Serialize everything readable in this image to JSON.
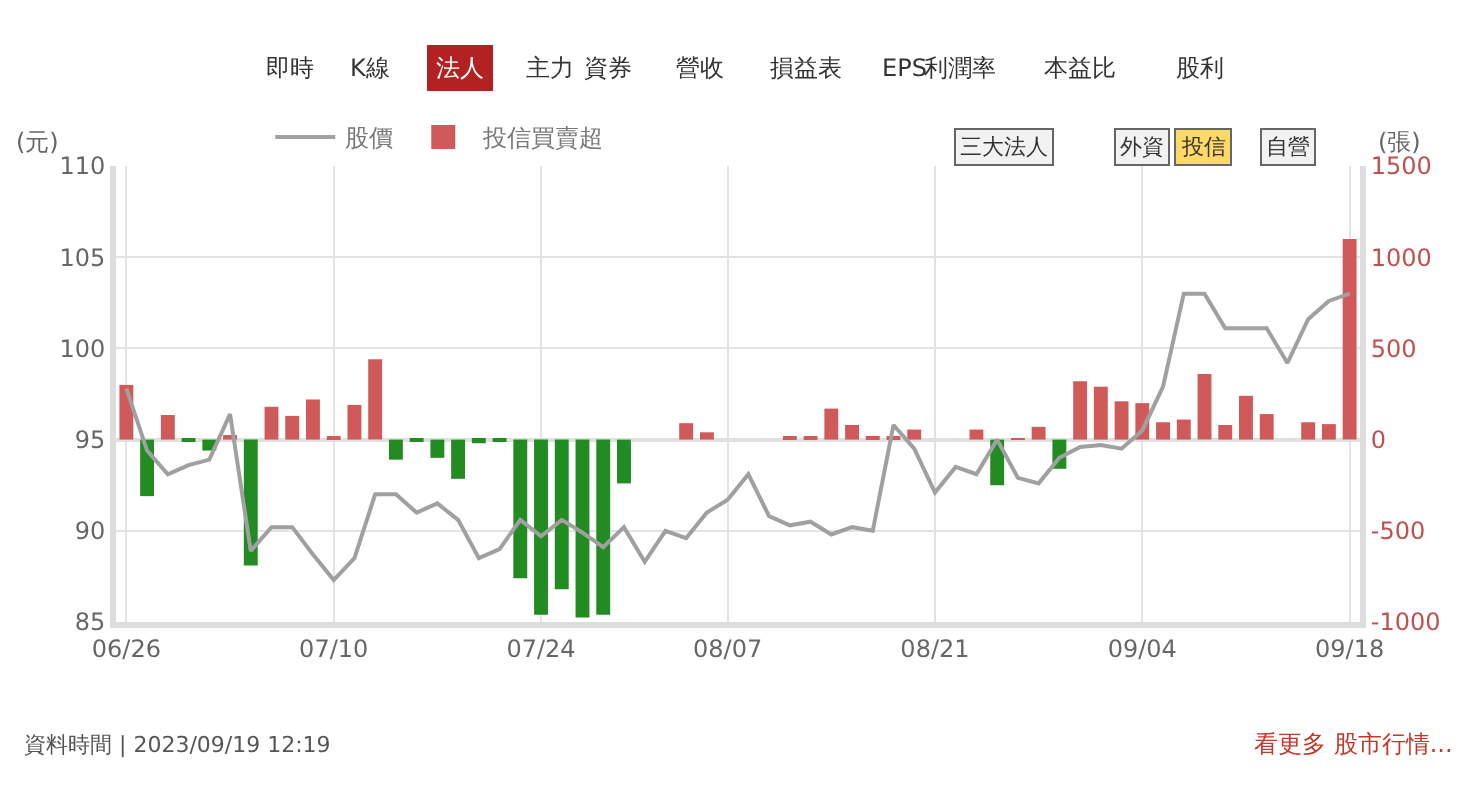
{
  "chart_data": {
    "type": "bar",
    "categories": [
      "06/26",
      null,
      null,
      null,
      null,
      null,
      null,
      null,
      null,
      null,
      "07/10",
      null,
      null,
      null,
      null,
      null,
      null,
      null,
      null,
      null,
      "07/24",
      null,
      null,
      null,
      null,
      null,
      null,
      null,
      null,
      "08/07",
      null,
      null,
      null,
      null,
      null,
      null,
      null,
      null,
      null,
      "08/21",
      null,
      null,
      null,
      null,
      null,
      null,
      null,
      null,
      null,
      "09/04",
      null,
      null,
      null,
      null,
      null,
      null,
      null,
      null,
      null,
      "09/18"
    ],
    "series": [
      {
        "name": "股價",
        "type": "line",
        "color": "#a0a0a0",
        "values": [
          97.8,
          94.4,
          93.1,
          93.6,
          93.9,
          96.4,
          88.9,
          90.2,
          90.2,
          88.7,
          87.3,
          88.5,
          92.0,
          92.0,
          91.0,
          91.5,
          90.6,
          88.5,
          89.0,
          90.6,
          89.7,
          90.6,
          89.9,
          89.1,
          90.2,
          88.3,
          90.0,
          89.6,
          91.0,
          91.7,
          93.1,
          90.8,
          90.3,
          90.5,
          89.8,
          90.2,
          90.0,
          95.8,
          94.5,
          92.1,
          93.5,
          93.1,
          95.0,
          92.9,
          92.6,
          94.0,
          94.6,
          94.7,
          94.5,
          95.5,
          97.9,
          103.0,
          103.0,
          101.1,
          101.1,
          101.1,
          99.2,
          101.6,
          102.6,
          103.0
        ]
      },
      {
        "name": "投信買賣超",
        "axis": "y2",
        "color": "#d05a5a",
        "values": [
          300,
          -310,
          135,
          -10,
          -60,
          25,
          -690,
          180,
          130,
          220,
          15,
          190,
          440,
          -110,
          -10,
          -100,
          -215,
          -20,
          -5,
          -760,
          -960,
          -820,
          -975,
          -960,
          -240,
          0,
          0,
          90,
          40,
          0,
          0,
          0,
          10,
          20,
          170,
          80,
          10,
          10,
          55,
          0,
          0,
          55,
          -250,
          5,
          70,
          -160,
          320,
          290,
          210,
          200,
          95,
          110,
          360,
          80,
          240,
          140,
          0,
          95,
          85,
          1100
        ],
        "colors": [
          "#d05a5a",
          "#228b22",
          "#d05a5a",
          "#228b22",
          "#228b22",
          "#d05a5a",
          "#228b22",
          "#d05a5a",
          "#d05a5a",
          "#d05a5a",
          "#d05a5a",
          "#d05a5a",
          "#d05a5a",
          "#228b22",
          "#228b22",
          "#228b22",
          "#228b22",
          "#228b22",
          "#228b22",
          "#228b22",
          "#228b22",
          "#228b22",
          "#228b22",
          "#228b22",
          "#228b22",
          "#d05a5a",
          "#d05a5a",
          "#d05a5a",
          "#d05a5a",
          "#d05a5a",
          "#d05a5a",
          "#d05a5a",
          "#d05a5a",
          "#d05a5a",
          "#d05a5a",
          "#d05a5a",
          "#d05a5a",
          "#d05a5a",
          "#d05a5a",
          "#d05a5a",
          "#d05a5a",
          "#d05a5a",
          "#228b22",
          "#d05a5a",
          "#d05a5a",
          "#228b22",
          "#d05a5a",
          "#d05a5a",
          "#d05a5a",
          "#d05a5a",
          "#d05a5a",
          "#d05a5a",
          "#d05a5a",
          "#d05a5a",
          "#d05a5a",
          "#d05a5a",
          "#d05a5a",
          "#d05a5a",
          "#d05a5a",
          "#d05a5a"
        ]
      }
    ],
    "ylabel": "(元)",
    "y2label": "(張)",
    "ylim": [
      85,
      110
    ],
    "yticks": [
      85,
      90,
      95,
      100,
      105,
      110
    ],
    "y2lim": [
      -1000,
      1500
    ],
    "y2ticks": [
      -1000,
      -500,
      0,
      500,
      1000,
      1500
    ],
    "grid": true,
    "legend": "top left",
    "annotations": [
      "即時",
      "K線",
      "法人",
      "主力",
      "資券",
      "營收",
      "損益表",
      "EPS",
      "利潤率",
      "本益比",
      "股利",
      "三大法人",
      "外資",
      "投信",
      "自營",
      "資料時間 | 2023/09/19 12:19",
      "看更多 股市行情..."
    ]
  }
}
